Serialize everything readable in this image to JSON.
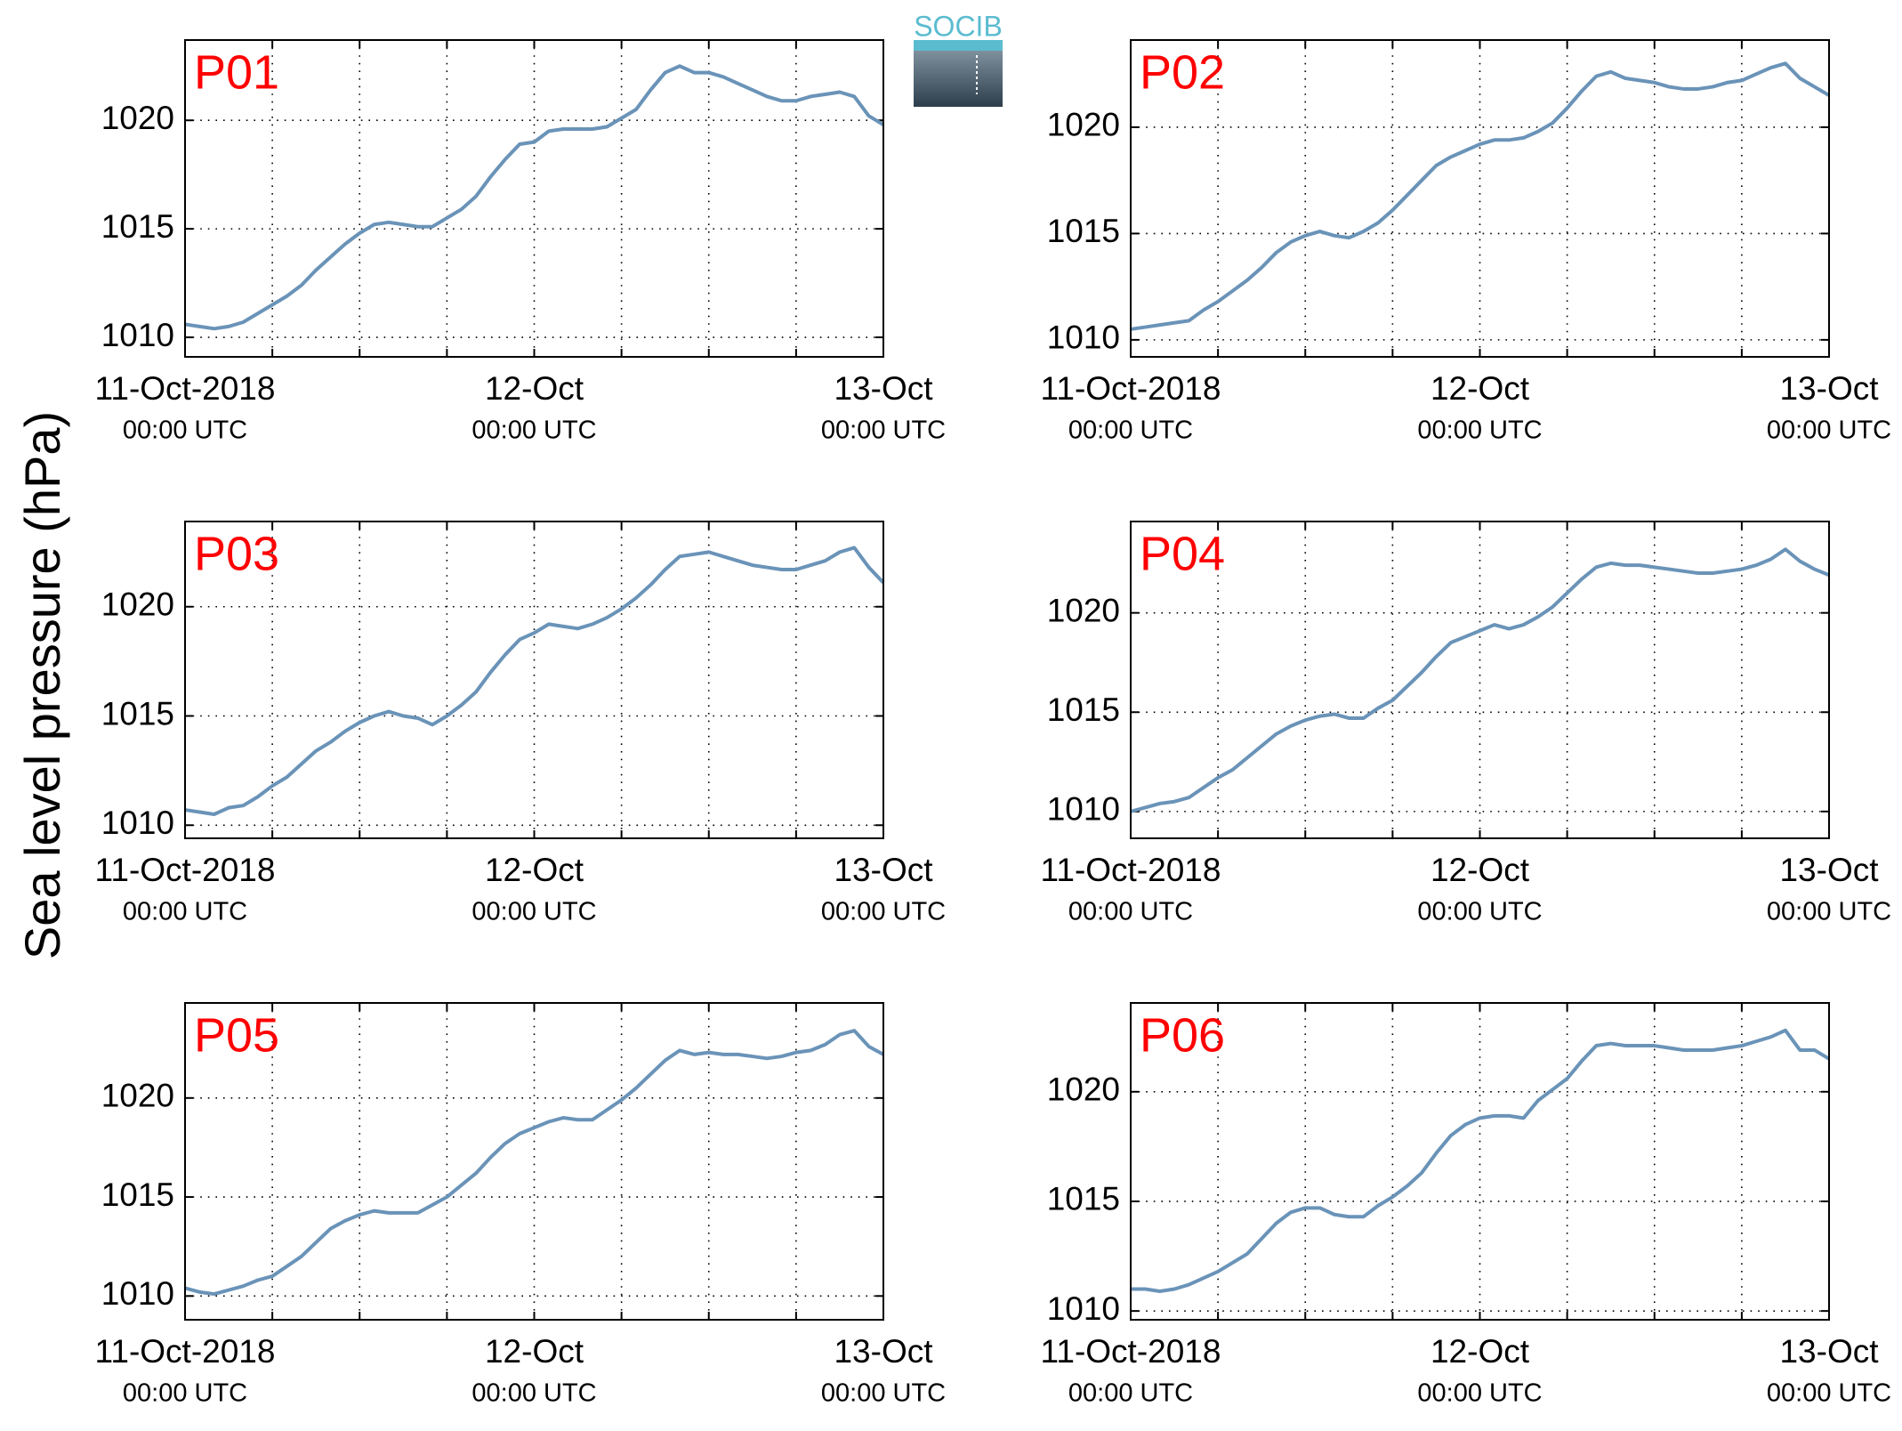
{
  "ylabel": "Sea level pressure (hPa)",
  "logo": "SOCIB",
  "chart_data": [
    {
      "type": "line",
      "title": "P01",
      "color": "#6a93b8",
      "grid": true,
      "xlim": [
        0,
        48
      ],
      "ylim": [
        1009.1,
        1023.7
      ],
      "yticks": [
        1010,
        1015,
        1020
      ],
      "xticks": [
        {
          "value": 0,
          "label": [
            "11-Oct-2018",
            "00:00 UTC"
          ]
        },
        {
          "value": 6,
          "label": null
        },
        {
          "value": 12,
          "label": null
        },
        {
          "value": 18,
          "label": null
        },
        {
          "value": 24,
          "label": [
            "12-Oct",
            "00:00 UTC"
          ]
        },
        {
          "value": 30,
          "label": null
        },
        {
          "value": 36,
          "label": null
        },
        {
          "value": 42,
          "label": null
        },
        {
          "value": 48,
          "label": [
            "13-Oct",
            "00:00 UTC"
          ]
        }
      ],
      "x": [
        0,
        1,
        2,
        3,
        4,
        5,
        6,
        7,
        8,
        9,
        10,
        11,
        12,
        13,
        14,
        15,
        16,
        17,
        18,
        19,
        20,
        21,
        22,
        23,
        24,
        25,
        26,
        27,
        28,
        29,
        30,
        31,
        32,
        33,
        34,
        35,
        36,
        37,
        38,
        39,
        40,
        41,
        42,
        43,
        44,
        45,
        46,
        47,
        48
      ],
      "values": [
        1010.6,
        1010.5,
        1010.4,
        1010.5,
        1010.7,
        1011.1,
        1011.5,
        1011.9,
        1012.4,
        1013.1,
        1013.7,
        1014.3,
        1014.8,
        1015.2,
        1015.3,
        1015.2,
        1015.1,
        1015.1,
        1015.5,
        1015.9,
        1016.5,
        1017.4,
        1018.2,
        1018.9,
        1019.0,
        1019.5,
        1019.6,
        1019.6,
        1019.6,
        1019.7,
        1020.1,
        1020.5,
        1021.4,
        1022.2,
        1022.5,
        1022.2,
        1022.2,
        1022.0,
        1021.7,
        1021.4,
        1021.1,
        1020.9,
        1020.9,
        1021.1,
        1021.2,
        1021.3,
        1021.1,
        1020.2,
        1019.8
      ]
    },
    {
      "type": "line",
      "title": "P02",
      "color": "#6a93b8",
      "grid": true,
      "xlim": [
        0,
        48
      ],
      "ylim": [
        1009.2,
        1024.1
      ],
      "yticks": [
        1010,
        1015,
        1020
      ],
      "xticks": [
        {
          "value": 0,
          "label": [
            "11-Oct-2018",
            "00:00 UTC"
          ]
        },
        {
          "value": 6,
          "label": null
        },
        {
          "value": 12,
          "label": null
        },
        {
          "value": 18,
          "label": null
        },
        {
          "value": 24,
          "label": [
            "12-Oct",
            "00:00 UTC"
          ]
        },
        {
          "value": 30,
          "label": null
        },
        {
          "value": 36,
          "label": null
        },
        {
          "value": 42,
          "label": null
        },
        {
          "value": 48,
          "label": [
            "13-Oct",
            "00:00 UTC"
          ]
        }
      ],
      "x": [
        0,
        1,
        2,
        3,
        4,
        5,
        6,
        7,
        8,
        9,
        10,
        11,
        12,
        13,
        14,
        15,
        16,
        17,
        18,
        19,
        20,
        21,
        22,
        23,
        24,
        25,
        26,
        27,
        28,
        29,
        30,
        31,
        32,
        33,
        34,
        35,
        36,
        37,
        38,
        39,
        40,
        41,
        42,
        43,
        44,
        45,
        46,
        47,
        48
      ],
      "values": [
        1010.5,
        1010.6,
        1010.7,
        1010.8,
        1010.9,
        1011.4,
        1011.8,
        1012.3,
        1012.8,
        1013.4,
        1014.1,
        1014.6,
        1014.9,
        1015.1,
        1014.9,
        1014.8,
        1015.1,
        1015.5,
        1016.1,
        1016.8,
        1017.5,
        1018.2,
        1018.6,
        1018.9,
        1019.2,
        1019.4,
        1019.4,
        1019.5,
        1019.8,
        1020.2,
        1020.9,
        1021.7,
        1022.4,
        1022.6,
        1022.3,
        1022.2,
        1022.1,
        1021.9,
        1021.8,
        1021.8,
        1021.9,
        1022.1,
        1022.2,
        1022.5,
        1022.8,
        1023.0,
        1022.3,
        1021.9,
        1021.5
      ]
    },
    {
      "type": "line",
      "title": "P03",
      "color": "#6a93b8",
      "grid": true,
      "xlim": [
        0,
        48
      ],
      "ylim": [
        1009.4,
        1023.9
      ],
      "yticks": [
        1010,
        1015,
        1020
      ],
      "xticks": [
        {
          "value": 0,
          "label": [
            "11-Oct-2018",
            "00:00 UTC"
          ]
        },
        {
          "value": 6,
          "label": null
        },
        {
          "value": 12,
          "label": null
        },
        {
          "value": 18,
          "label": null
        },
        {
          "value": 24,
          "label": [
            "12-Oct",
            "00:00 UTC"
          ]
        },
        {
          "value": 30,
          "label": null
        },
        {
          "value": 36,
          "label": null
        },
        {
          "value": 42,
          "label": null
        },
        {
          "value": 48,
          "label": [
            "13-Oct",
            "00:00 UTC"
          ]
        }
      ],
      "x": [
        0,
        1,
        2,
        3,
        4,
        5,
        6,
        7,
        8,
        9,
        10,
        11,
        12,
        13,
        14,
        15,
        16,
        17,
        18,
        19,
        20,
        21,
        22,
        23,
        24,
        25,
        26,
        27,
        28,
        29,
        30,
        31,
        32,
        33,
        34,
        35,
        36,
        37,
        38,
        39,
        40,
        41,
        42,
        43,
        44,
        45,
        46,
        47,
        48
      ],
      "values": [
        1010.7,
        1010.6,
        1010.5,
        1010.8,
        1010.9,
        1011.3,
        1011.8,
        1012.2,
        1012.8,
        1013.4,
        1013.8,
        1014.3,
        1014.7,
        1015.0,
        1015.2,
        1015.0,
        1014.9,
        1014.6,
        1015.0,
        1015.5,
        1016.1,
        1017.0,
        1017.8,
        1018.5,
        1018.8,
        1019.2,
        1019.1,
        1019.0,
        1019.2,
        1019.5,
        1019.9,
        1020.4,
        1021.0,
        1021.7,
        1022.3,
        1022.4,
        1022.5,
        1022.3,
        1022.1,
        1021.9,
        1021.8,
        1021.7,
        1021.7,
        1021.9,
        1022.1,
        1022.5,
        1022.7,
        1021.8,
        1021.1
      ]
    },
    {
      "type": "line",
      "title": "P04",
      "color": "#6a93b8",
      "grid": true,
      "xlim": [
        0,
        48
      ],
      "ylim": [
        1008.65,
        1024.6
      ],
      "yticks": [
        1010,
        1015,
        1020
      ],
      "xticks": [
        {
          "value": 0,
          "label": [
            "11-Oct-2018",
            "00:00 UTC"
          ]
        },
        {
          "value": 6,
          "label": null
        },
        {
          "value": 12,
          "label": null
        },
        {
          "value": 18,
          "label": null
        },
        {
          "value": 24,
          "label": [
            "12-Oct",
            "00:00 UTC"
          ]
        },
        {
          "value": 30,
          "label": null
        },
        {
          "value": 36,
          "label": null
        },
        {
          "value": 42,
          "label": null
        },
        {
          "value": 48,
          "label": [
            "13-Oct",
            "00:00 UTC"
          ]
        }
      ],
      "x": [
        0,
        1,
        2,
        3,
        4,
        5,
        6,
        7,
        8,
        9,
        10,
        11,
        12,
        13,
        14,
        15,
        16,
        17,
        18,
        19,
        20,
        21,
        22,
        23,
        24,
        25,
        26,
        27,
        28,
        29,
        30,
        31,
        32,
        33,
        34,
        35,
        36,
        37,
        38,
        39,
        40,
        41,
        42,
        43,
        44,
        45,
        46,
        47,
        48
      ],
      "values": [
        1010.0,
        1010.2,
        1010.4,
        1010.5,
        1010.7,
        1011.2,
        1011.7,
        1012.1,
        1012.7,
        1013.3,
        1013.9,
        1014.3,
        1014.6,
        1014.8,
        1014.9,
        1014.7,
        1014.7,
        1015.2,
        1015.6,
        1016.3,
        1017.0,
        1017.8,
        1018.5,
        1018.8,
        1019.1,
        1019.4,
        1019.2,
        1019.4,
        1019.8,
        1020.3,
        1021.0,
        1021.7,
        1022.3,
        1022.5,
        1022.4,
        1022.4,
        1022.3,
        1022.2,
        1022.1,
        1022.0,
        1022.0,
        1022.1,
        1022.2,
        1022.4,
        1022.7,
        1023.2,
        1022.6,
        1022.2,
        1021.9
      ]
    },
    {
      "type": "line",
      "title": "P05",
      "color": "#6a93b8",
      "grid": true,
      "xlim": [
        0,
        48
      ],
      "ylim": [
        1008.8,
        1024.8
      ],
      "yticks": [
        1010,
        1015,
        1020
      ],
      "xticks": [
        {
          "value": 0,
          "label": [
            "11-Oct-2018",
            "00:00 UTC"
          ]
        },
        {
          "value": 6,
          "label": null
        },
        {
          "value": 12,
          "label": null
        },
        {
          "value": 18,
          "label": null
        },
        {
          "value": 24,
          "label": [
            "12-Oct",
            "00:00 UTC"
          ]
        },
        {
          "value": 30,
          "label": null
        },
        {
          "value": 36,
          "label": null
        },
        {
          "value": 42,
          "label": null
        },
        {
          "value": 48,
          "label": [
            "13-Oct",
            "00:00 UTC"
          ]
        }
      ],
      "x": [
        0,
        1,
        2,
        3,
        4,
        5,
        6,
        7,
        8,
        9,
        10,
        11,
        12,
        13,
        14,
        15,
        16,
        17,
        18,
        19,
        20,
        21,
        22,
        23,
        24,
        25,
        26,
        27,
        28,
        29,
        30,
        31,
        32,
        33,
        34,
        35,
        36,
        37,
        38,
        39,
        40,
        41,
        42,
        43,
        44,
        45,
        46,
        47,
        48
      ],
      "values": [
        1010.4,
        1010.2,
        1010.1,
        1010.3,
        1010.5,
        1010.8,
        1011.0,
        1011.5,
        1012.0,
        1012.7,
        1013.4,
        1013.8,
        1014.1,
        1014.3,
        1014.2,
        1014.2,
        1014.2,
        1014.6,
        1015.0,
        1015.6,
        1016.2,
        1017.0,
        1017.7,
        1018.2,
        1018.5,
        1018.8,
        1019.0,
        1018.9,
        1018.9,
        1019.4,
        1019.9,
        1020.5,
        1021.2,
        1021.9,
        1022.4,
        1022.2,
        1022.3,
        1022.2,
        1022.2,
        1022.1,
        1022.0,
        1022.1,
        1022.3,
        1022.4,
        1022.7,
        1023.2,
        1023.4,
        1022.6,
        1022.2
      ]
    },
    {
      "type": "line",
      "title": "P06",
      "color": "#6a93b8",
      "grid": true,
      "xlim": [
        0,
        48
      ],
      "ylim": [
        1009.6,
        1024.05
      ],
      "yticks": [
        1010,
        1015,
        1020
      ],
      "xticks": [
        {
          "value": 0,
          "label": [
            "11-Oct-2018",
            "00:00 UTC"
          ]
        },
        {
          "value": 6,
          "label": null
        },
        {
          "value": 12,
          "label": null
        },
        {
          "value": 18,
          "label": null
        },
        {
          "value": 24,
          "label": [
            "12-Oct",
            "00:00 UTC"
          ]
        },
        {
          "value": 30,
          "label": null
        },
        {
          "value": 36,
          "label": null
        },
        {
          "value": 42,
          "label": null
        },
        {
          "value": 48,
          "label": [
            "13-Oct",
            "00:00 UTC"
          ]
        }
      ],
      "x": [
        0,
        1,
        2,
        3,
        4,
        5,
        6,
        7,
        8,
        9,
        10,
        11,
        12,
        13,
        14,
        15,
        16,
        17,
        18,
        19,
        20,
        21,
        22,
        23,
        24,
        25,
        26,
        27,
        28,
        29,
        30,
        31,
        32,
        33,
        34,
        35,
        36,
        37,
        38,
        39,
        40,
        41,
        42,
        43,
        44,
        45,
        46,
        47,
        48
      ],
      "values": [
        1011.0,
        1011.0,
        1010.9,
        1011.0,
        1011.2,
        1011.5,
        1011.8,
        1012.2,
        1012.6,
        1013.3,
        1014.0,
        1014.5,
        1014.7,
        1014.7,
        1014.4,
        1014.3,
        1014.3,
        1014.8,
        1015.2,
        1015.7,
        1016.3,
        1017.2,
        1018.0,
        1018.5,
        1018.8,
        1018.9,
        1018.9,
        1018.8,
        1019.6,
        1020.1,
        1020.6,
        1021.4,
        1022.1,
        1022.2,
        1022.1,
        1022.1,
        1022.1,
        1022.0,
        1021.9,
        1021.9,
        1021.9,
        1022.0,
        1022.1,
        1022.3,
        1022.5,
        1022.8,
        1021.9,
        1021.9,
        1021.5
      ]
    }
  ]
}
